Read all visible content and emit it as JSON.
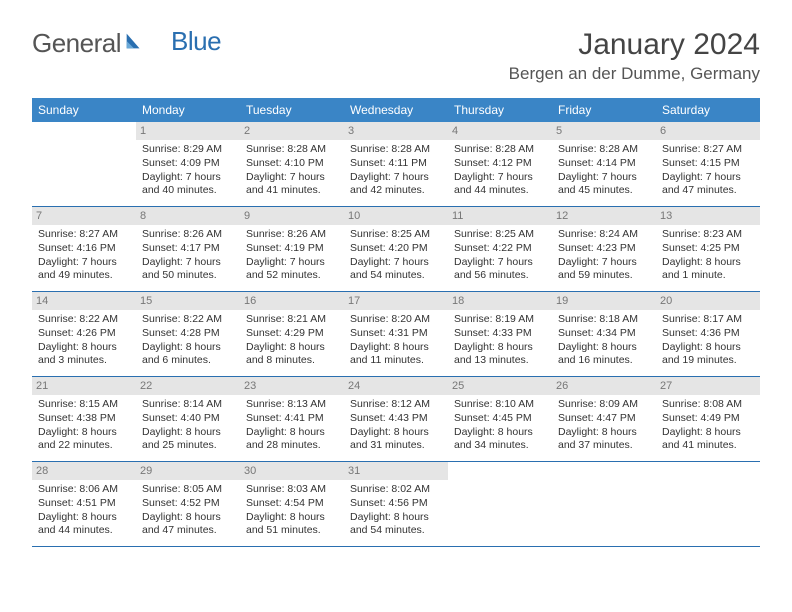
{
  "logo": {
    "part1": "General",
    "part2": "Blue"
  },
  "title": "January 2024",
  "location": "Bergen an der Dumme, Germany",
  "day_names": [
    "Sunday",
    "Monday",
    "Tuesday",
    "Wednesday",
    "Thursday",
    "Friday",
    "Saturday"
  ],
  "colors": {
    "header_bg": "#3a85c6",
    "header_text": "#ffffff",
    "rule": "#2a6fb0",
    "daybar_bg": "#e5e5e5",
    "daybar_text": "#777777",
    "logo_blue": "#2a6fb0"
  },
  "weeks": [
    [
      null,
      {
        "n": "1",
        "sr": "Sunrise: 8:29 AM",
        "ss": "Sunset: 4:09 PM",
        "d1": "Daylight: 7 hours",
        "d2": "and 40 minutes."
      },
      {
        "n": "2",
        "sr": "Sunrise: 8:28 AM",
        "ss": "Sunset: 4:10 PM",
        "d1": "Daylight: 7 hours",
        "d2": "and 41 minutes."
      },
      {
        "n": "3",
        "sr": "Sunrise: 8:28 AM",
        "ss": "Sunset: 4:11 PM",
        "d1": "Daylight: 7 hours",
        "d2": "and 42 minutes."
      },
      {
        "n": "4",
        "sr": "Sunrise: 8:28 AM",
        "ss": "Sunset: 4:12 PM",
        "d1": "Daylight: 7 hours",
        "d2": "and 44 minutes."
      },
      {
        "n": "5",
        "sr": "Sunrise: 8:28 AM",
        "ss": "Sunset: 4:14 PM",
        "d1": "Daylight: 7 hours",
        "d2": "and 45 minutes."
      },
      {
        "n": "6",
        "sr": "Sunrise: 8:27 AM",
        "ss": "Sunset: 4:15 PM",
        "d1": "Daylight: 7 hours",
        "d2": "and 47 minutes."
      }
    ],
    [
      {
        "n": "7",
        "sr": "Sunrise: 8:27 AM",
        "ss": "Sunset: 4:16 PM",
        "d1": "Daylight: 7 hours",
        "d2": "and 49 minutes."
      },
      {
        "n": "8",
        "sr": "Sunrise: 8:26 AM",
        "ss": "Sunset: 4:17 PM",
        "d1": "Daylight: 7 hours",
        "d2": "and 50 minutes."
      },
      {
        "n": "9",
        "sr": "Sunrise: 8:26 AM",
        "ss": "Sunset: 4:19 PM",
        "d1": "Daylight: 7 hours",
        "d2": "and 52 minutes."
      },
      {
        "n": "10",
        "sr": "Sunrise: 8:25 AM",
        "ss": "Sunset: 4:20 PM",
        "d1": "Daylight: 7 hours",
        "d2": "and 54 minutes."
      },
      {
        "n": "11",
        "sr": "Sunrise: 8:25 AM",
        "ss": "Sunset: 4:22 PM",
        "d1": "Daylight: 7 hours",
        "d2": "and 56 minutes."
      },
      {
        "n": "12",
        "sr": "Sunrise: 8:24 AM",
        "ss": "Sunset: 4:23 PM",
        "d1": "Daylight: 7 hours",
        "d2": "and 59 minutes."
      },
      {
        "n": "13",
        "sr": "Sunrise: 8:23 AM",
        "ss": "Sunset: 4:25 PM",
        "d1": "Daylight: 8 hours",
        "d2": "and 1 minute."
      }
    ],
    [
      {
        "n": "14",
        "sr": "Sunrise: 8:22 AM",
        "ss": "Sunset: 4:26 PM",
        "d1": "Daylight: 8 hours",
        "d2": "and 3 minutes."
      },
      {
        "n": "15",
        "sr": "Sunrise: 8:22 AM",
        "ss": "Sunset: 4:28 PM",
        "d1": "Daylight: 8 hours",
        "d2": "and 6 minutes."
      },
      {
        "n": "16",
        "sr": "Sunrise: 8:21 AM",
        "ss": "Sunset: 4:29 PM",
        "d1": "Daylight: 8 hours",
        "d2": "and 8 minutes."
      },
      {
        "n": "17",
        "sr": "Sunrise: 8:20 AM",
        "ss": "Sunset: 4:31 PM",
        "d1": "Daylight: 8 hours",
        "d2": "and 11 minutes."
      },
      {
        "n": "18",
        "sr": "Sunrise: 8:19 AM",
        "ss": "Sunset: 4:33 PM",
        "d1": "Daylight: 8 hours",
        "d2": "and 13 minutes."
      },
      {
        "n": "19",
        "sr": "Sunrise: 8:18 AM",
        "ss": "Sunset: 4:34 PM",
        "d1": "Daylight: 8 hours",
        "d2": "and 16 minutes."
      },
      {
        "n": "20",
        "sr": "Sunrise: 8:17 AM",
        "ss": "Sunset: 4:36 PM",
        "d1": "Daylight: 8 hours",
        "d2": "and 19 minutes."
      }
    ],
    [
      {
        "n": "21",
        "sr": "Sunrise: 8:15 AM",
        "ss": "Sunset: 4:38 PM",
        "d1": "Daylight: 8 hours",
        "d2": "and 22 minutes."
      },
      {
        "n": "22",
        "sr": "Sunrise: 8:14 AM",
        "ss": "Sunset: 4:40 PM",
        "d1": "Daylight: 8 hours",
        "d2": "and 25 minutes."
      },
      {
        "n": "23",
        "sr": "Sunrise: 8:13 AM",
        "ss": "Sunset: 4:41 PM",
        "d1": "Daylight: 8 hours",
        "d2": "and 28 minutes."
      },
      {
        "n": "24",
        "sr": "Sunrise: 8:12 AM",
        "ss": "Sunset: 4:43 PM",
        "d1": "Daylight: 8 hours",
        "d2": "and 31 minutes."
      },
      {
        "n": "25",
        "sr": "Sunrise: 8:10 AM",
        "ss": "Sunset: 4:45 PM",
        "d1": "Daylight: 8 hours",
        "d2": "and 34 minutes."
      },
      {
        "n": "26",
        "sr": "Sunrise: 8:09 AM",
        "ss": "Sunset: 4:47 PM",
        "d1": "Daylight: 8 hours",
        "d2": "and 37 minutes."
      },
      {
        "n": "27",
        "sr": "Sunrise: 8:08 AM",
        "ss": "Sunset: 4:49 PM",
        "d1": "Daylight: 8 hours",
        "d2": "and 41 minutes."
      }
    ],
    [
      {
        "n": "28",
        "sr": "Sunrise: 8:06 AM",
        "ss": "Sunset: 4:51 PM",
        "d1": "Daylight: 8 hours",
        "d2": "and 44 minutes."
      },
      {
        "n": "29",
        "sr": "Sunrise: 8:05 AM",
        "ss": "Sunset: 4:52 PM",
        "d1": "Daylight: 8 hours",
        "d2": "and 47 minutes."
      },
      {
        "n": "30",
        "sr": "Sunrise: 8:03 AM",
        "ss": "Sunset: 4:54 PM",
        "d1": "Daylight: 8 hours",
        "d2": "and 51 minutes."
      },
      {
        "n": "31",
        "sr": "Sunrise: 8:02 AM",
        "ss": "Sunset: 4:56 PM",
        "d1": "Daylight: 8 hours",
        "d2": "and 54 minutes."
      },
      null,
      null,
      null
    ]
  ]
}
